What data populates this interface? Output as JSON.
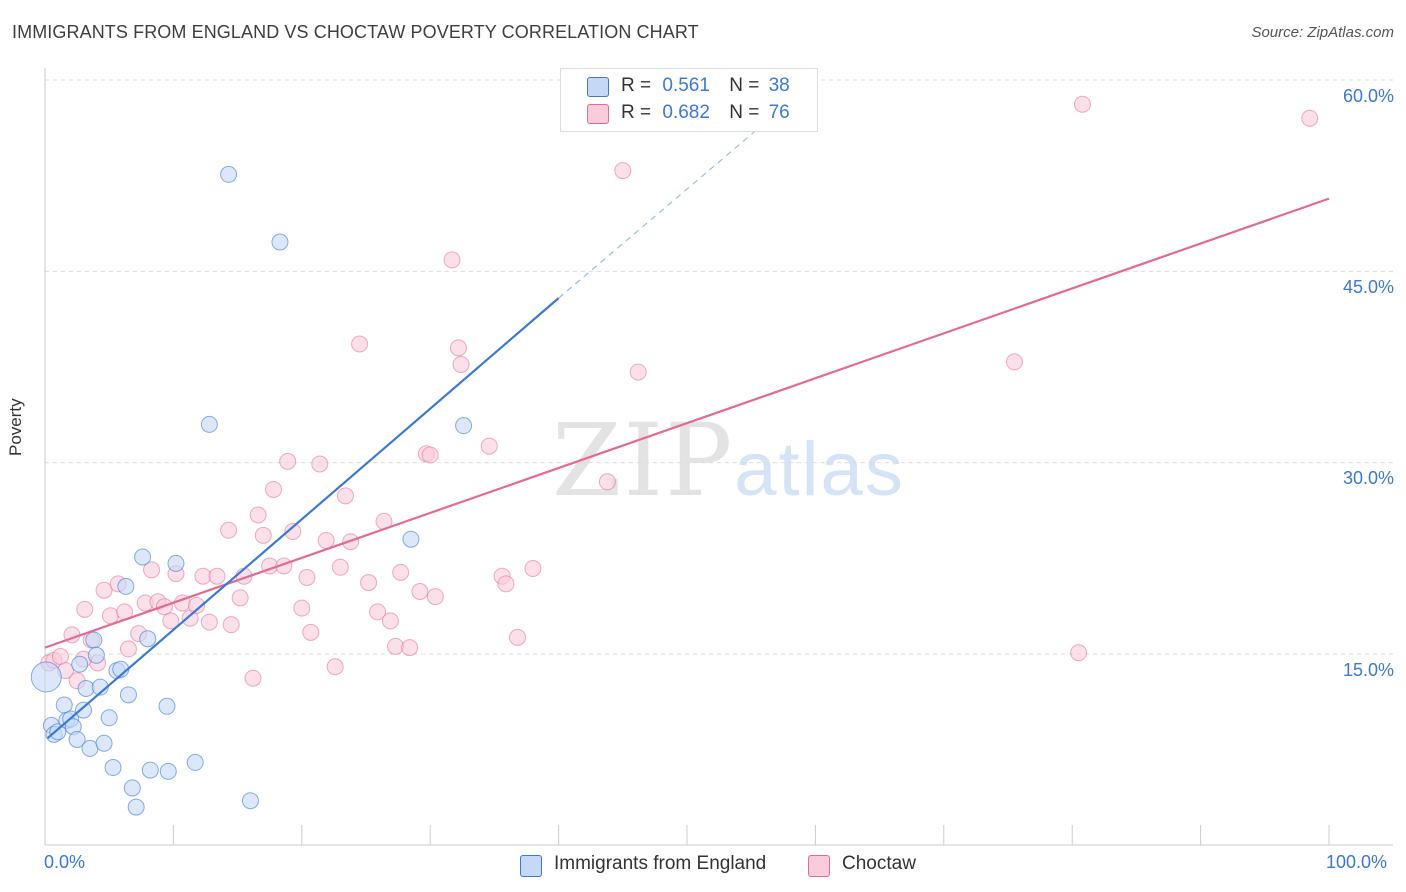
{
  "title": "IMMIGRANTS FROM ENGLAND VS CHOCTAW POVERTY CORRELATION CHART",
  "source": "Source: ZipAtlas.com",
  "watermark": {
    "zip": "ZIP",
    "atlas": "atlas"
  },
  "colors": {
    "blue": "#3b78d8",
    "pink": "#e46a95",
    "blue_fill": "#c5d9f6",
    "pink_fill": "#f8ccdb",
    "tick_text": "#3b78d8"
  },
  "legend_top": {
    "rows": [
      {
        "r_label": "R =",
        "r_value": "0.561",
        "n_label": "N =",
        "n_value": "38"
      },
      {
        "r_label": "R =",
        "r_value": "0.682",
        "n_label": "N =",
        "n_value": "76"
      }
    ]
  },
  "legend_bottom": [
    "Immigrants from England",
    "Choctaw"
  ],
  "chart_data": {
    "type": "scatter",
    "ylabel": "Poverty",
    "xlabel": "",
    "xlim": [
      0,
      105
    ],
    "ylim": [
      0,
      63
    ],
    "x_tick_labels": [
      "0.0%",
      "100.0%"
    ],
    "y_tick_labels": [
      "15.0%",
      "30.0%",
      "45.0%",
      "60.0%"
    ],
    "y_ticks": [
      15,
      30,
      45,
      60
    ],
    "grid": true,
    "legend_position": "top-center",
    "series": [
      {
        "name": "Immigrants from England",
        "trend": {
          "x": [
            0.2,
            40.0
          ],
          "y": [
            8.4,
            42.9
          ]
        },
        "trend_dashed": {
          "x": [
            40.0,
            60.0
          ],
          "y": [
            42.9,
            60.0
          ]
        },
        "points": [
          [
            0.1,
            13.2
          ],
          [
            0.5,
            9.4
          ],
          [
            0.7,
            8.7
          ],
          [
            1.0,
            8.9
          ],
          [
            1.5,
            11.0
          ],
          [
            1.7,
            9.8
          ],
          [
            2.0,
            9.9
          ],
          [
            2.2,
            9.3
          ],
          [
            2.5,
            8.3
          ],
          [
            2.7,
            14.2
          ],
          [
            3.0,
            10.6
          ],
          [
            3.2,
            12.3
          ],
          [
            3.5,
            7.6
          ],
          [
            3.8,
            16.1
          ],
          [
            4.0,
            14.9
          ],
          [
            4.3,
            12.4
          ],
          [
            4.6,
            8.0
          ],
          [
            5.0,
            10.0
          ],
          [
            5.3,
            6.1
          ],
          [
            5.6,
            13.7
          ],
          [
            5.9,
            13.8
          ],
          [
            6.3,
            20.3
          ],
          [
            6.5,
            11.8
          ],
          [
            6.8,
            4.5
          ],
          [
            7.1,
            3.0
          ],
          [
            7.6,
            22.6
          ],
          [
            8.0,
            16.2
          ],
          [
            8.2,
            5.9
          ],
          [
            9.5,
            10.9
          ],
          [
            9.6,
            5.8
          ],
          [
            10.2,
            22.1
          ],
          [
            11.7,
            6.5
          ],
          [
            12.8,
            33.0
          ],
          [
            14.3,
            52.6
          ],
          [
            16.0,
            3.5
          ],
          [
            18.3,
            47.3
          ],
          [
            32.6,
            32.9
          ],
          [
            28.5,
            24.0
          ]
        ]
      },
      {
        "name": "Choctaw",
        "trend": {
          "x": [
            0,
            100
          ],
          "y": [
            15.5,
            50.7
          ]
        },
        "points": [
          [
            0.3,
            14.3
          ],
          [
            0.7,
            14.5
          ],
          [
            1.2,
            14.8
          ],
          [
            1.6,
            13.7
          ],
          [
            2.1,
            16.5
          ],
          [
            2.5,
            12.9
          ],
          [
            3.1,
            18.5
          ],
          [
            3.6,
            16.1
          ],
          [
            4.1,
            14.3
          ],
          [
            4.6,
            20.0
          ],
          [
            5.1,
            18.0
          ],
          [
            5.7,
            20.5
          ],
          [
            6.2,
            18.3
          ],
          [
            6.5,
            15.4
          ],
          [
            7.3,
            16.6
          ],
          [
            7.8,
            19.0
          ],
          [
            8.3,
            21.6
          ],
          [
            8.8,
            19.1
          ],
          [
            9.3,
            18.7
          ],
          [
            9.8,
            17.6
          ],
          [
            10.2,
            21.3
          ],
          [
            10.7,
            19.0
          ],
          [
            11.3,
            17.8
          ],
          [
            11.8,
            18.8
          ],
          [
            12.3,
            21.1
          ],
          [
            12.8,
            17.5
          ],
          [
            13.4,
            21.1
          ],
          [
            14.3,
            24.7
          ],
          [
            14.5,
            17.3
          ],
          [
            15.2,
            19.4
          ],
          [
            15.5,
            21.1
          ],
          [
            16.2,
            13.1
          ],
          [
            16.6,
            25.9
          ],
          [
            17.0,
            24.3
          ],
          [
            17.5,
            21.9
          ],
          [
            17.8,
            27.9
          ],
          [
            18.6,
            21.9
          ],
          [
            18.9,
            30.1
          ],
          [
            19.3,
            24.6
          ],
          [
            20.0,
            18.6
          ],
          [
            20.4,
            21.0
          ],
          [
            20.7,
            16.7
          ],
          [
            21.4,
            29.9
          ],
          [
            21.9,
            23.9
          ],
          [
            22.6,
            14.0
          ],
          [
            23.0,
            21.8
          ],
          [
            23.4,
            27.4
          ],
          [
            23.8,
            23.8
          ],
          [
            24.5,
            39.3
          ],
          [
            25.2,
            20.6
          ],
          [
            25.9,
            18.3
          ],
          [
            26.4,
            25.4
          ],
          [
            26.9,
            17.6
          ],
          [
            27.3,
            15.6
          ],
          [
            27.7,
            21.4
          ],
          [
            28.4,
            15.5
          ],
          [
            29.2,
            19.9
          ],
          [
            29.7,
            30.7
          ],
          [
            30.0,
            30.6
          ],
          [
            30.4,
            19.5
          ],
          [
            31.7,
            45.9
          ],
          [
            32.2,
            39.0
          ],
          [
            32.4,
            37.7
          ],
          [
            34.6,
            31.3
          ],
          [
            35.6,
            21.1
          ],
          [
            35.9,
            20.5
          ],
          [
            36.8,
            16.3
          ],
          [
            38.0,
            21.7
          ],
          [
            43.8,
            28.5
          ],
          [
            45.0,
            52.9
          ],
          [
            46.2,
            37.1
          ],
          [
            75.5,
            37.9
          ],
          [
            80.5,
            15.1
          ],
          [
            80.8,
            58.1
          ],
          [
            98.5,
            57.0
          ],
          [
            3.0,
            14.6
          ]
        ]
      }
    ]
  }
}
